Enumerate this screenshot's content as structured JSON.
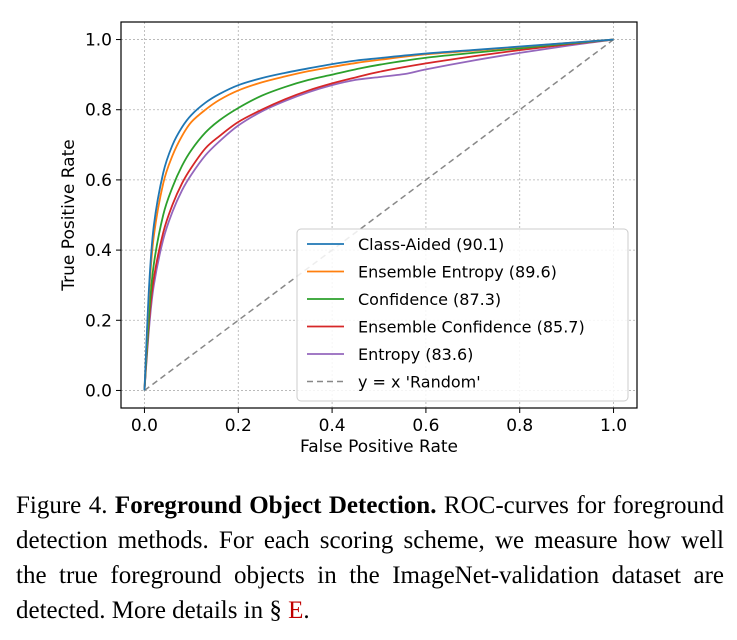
{
  "chart_data": {
    "type": "line",
    "xlabel": "False Positive Rate",
    "ylabel": "True Positive Rate",
    "xlim": [
      -0.05,
      1.05
    ],
    "ylim": [
      -0.05,
      1.05
    ],
    "xticks": [
      "0.0",
      "0.2",
      "0.4",
      "0.6",
      "0.8",
      "1.0"
    ],
    "yticks": [
      "0.0",
      "0.2",
      "0.4",
      "0.6",
      "0.8",
      "1.0"
    ],
    "grid": true,
    "legend_position": "lower-right",
    "series": [
      {
        "name": "Class-Aided (90.1)",
        "color": "#1f77b4",
        "dashed": false,
        "x": [
          0,
          0.01,
          0.02,
          0.04,
          0.06,
          0.08,
          0.1,
          0.13,
          0.16,
          0.2,
          0.25,
          0.3,
          0.35,
          0.4,
          0.45,
          0.5,
          0.6,
          0.7,
          0.8,
          0.9,
          1.0
        ],
        "y": [
          0,
          0.3,
          0.47,
          0.62,
          0.7,
          0.75,
          0.785,
          0.82,
          0.845,
          0.87,
          0.89,
          0.905,
          0.918,
          0.93,
          0.94,
          0.947,
          0.96,
          0.97,
          0.98,
          0.99,
          1.0
        ]
      },
      {
        "name": "Ensemble Entropy (89.6)",
        "color": "#ff7f0e",
        "dashed": false,
        "x": [
          0,
          0.01,
          0.02,
          0.04,
          0.06,
          0.08,
          0.1,
          0.13,
          0.16,
          0.2,
          0.25,
          0.3,
          0.35,
          0.4,
          0.45,
          0.5,
          0.6,
          0.7,
          0.8,
          0.9,
          1.0
        ],
        "y": [
          0,
          0.28,
          0.44,
          0.59,
          0.67,
          0.725,
          0.765,
          0.8,
          0.828,
          0.855,
          0.878,
          0.895,
          0.91,
          0.922,
          0.933,
          0.942,
          0.958,
          0.968,
          0.979,
          0.99,
          1.0
        ]
      },
      {
        "name": "Confidence (87.3)",
        "color": "#2ca02c",
        "dashed": false,
        "x": [
          0,
          0.01,
          0.02,
          0.04,
          0.06,
          0.08,
          0.1,
          0.13,
          0.16,
          0.2,
          0.25,
          0.3,
          0.35,
          0.4,
          0.45,
          0.5,
          0.6,
          0.7,
          0.8,
          0.9,
          1.0
        ],
        "y": [
          0,
          0.22,
          0.36,
          0.5,
          0.58,
          0.64,
          0.685,
          0.735,
          0.77,
          0.805,
          0.84,
          0.865,
          0.885,
          0.9,
          0.915,
          0.928,
          0.948,
          0.962,
          0.975,
          0.988,
          1.0
        ]
      },
      {
        "name": "Ensemble Confidence (85.7)",
        "color": "#d62728",
        "dashed": false,
        "x": [
          0,
          0.01,
          0.02,
          0.04,
          0.06,
          0.08,
          0.1,
          0.13,
          0.16,
          0.2,
          0.25,
          0.3,
          0.35,
          0.4,
          0.45,
          0.5,
          0.6,
          0.7,
          0.8,
          0.9,
          1.0
        ],
        "y": [
          0,
          0.2,
          0.32,
          0.45,
          0.53,
          0.59,
          0.635,
          0.69,
          0.725,
          0.765,
          0.8,
          0.83,
          0.855,
          0.875,
          0.892,
          0.908,
          0.932,
          0.952,
          0.97,
          0.986,
          1.0
        ]
      },
      {
        "name": "Entropy (83.6)",
        "color": "#9467bd",
        "dashed": false,
        "x": [
          0,
          0.01,
          0.02,
          0.04,
          0.06,
          0.08,
          0.1,
          0.13,
          0.16,
          0.2,
          0.25,
          0.3,
          0.35,
          0.4,
          0.45,
          0.5,
          0.56,
          0.6,
          0.7,
          0.8,
          0.9,
          1.0
        ],
        "y": [
          0,
          0.18,
          0.3,
          0.43,
          0.51,
          0.57,
          0.615,
          0.67,
          0.71,
          0.755,
          0.795,
          0.825,
          0.85,
          0.87,
          0.885,
          0.893,
          0.903,
          0.915,
          0.94,
          0.962,
          0.982,
          1.0
        ]
      },
      {
        "name": "y = x 'Random'",
        "color": "#888888",
        "dashed": true,
        "x": [
          0,
          1
        ],
        "y": [
          0,
          1
        ]
      }
    ]
  },
  "caption": {
    "prefix": "Figure 4. ",
    "bold": "Foreground Object Detection.",
    "text": " ROC-curves for foreground detection methods. For each scoring scheme, we measure how well the true foreground objects in the ImageNet-validation dataset are detected. More details in § ",
    "ref": "E",
    "suffix": "."
  }
}
